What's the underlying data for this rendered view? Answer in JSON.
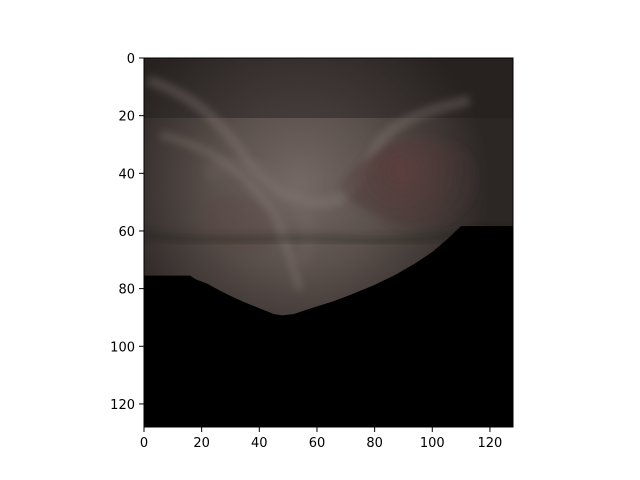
{
  "figure": {
    "background": "#ffffff",
    "axis_color": "#000000"
  },
  "image": {
    "description_role": "endoscopic-style tissue view with black masked lower region",
    "x_range": [
      0,
      128
    ],
    "y_range": [
      128,
      0
    ],
    "boundary_y": [
      [
        0,
        75.5
      ],
      [
        16,
        75.5
      ],
      [
        18,
        76.8
      ],
      [
        22,
        78.3
      ],
      [
        26,
        80.5
      ],
      [
        30,
        82.5
      ],
      [
        35,
        84.8
      ],
      [
        40,
        86.8
      ],
      [
        45,
        88.8
      ],
      [
        48,
        89.3
      ],
      [
        52,
        88.8
      ],
      [
        58,
        86.8
      ],
      [
        66,
        84.3
      ],
      [
        72,
        82.0
      ],
      [
        80,
        78.7
      ],
      [
        87,
        75.3
      ],
      [
        94,
        71.3
      ],
      [
        100,
        67.3
      ],
      [
        105,
        63.0
      ],
      [
        110,
        58.3
      ],
      [
        128,
        58.3
      ]
    ],
    "colors": {
      "tissue_dark": "#2c2624",
      "tissue_mid": "#4a403c",
      "tissue_light": "#6e6460",
      "lesion": "#4b3736",
      "mask": "#000000"
    }
  },
  "axes": {
    "x_ticks": [
      "0",
      "20",
      "40",
      "60",
      "80",
      "100",
      "120"
    ],
    "y_ticks": [
      "0",
      "20",
      "40",
      "60",
      "80",
      "100",
      "120"
    ]
  }
}
